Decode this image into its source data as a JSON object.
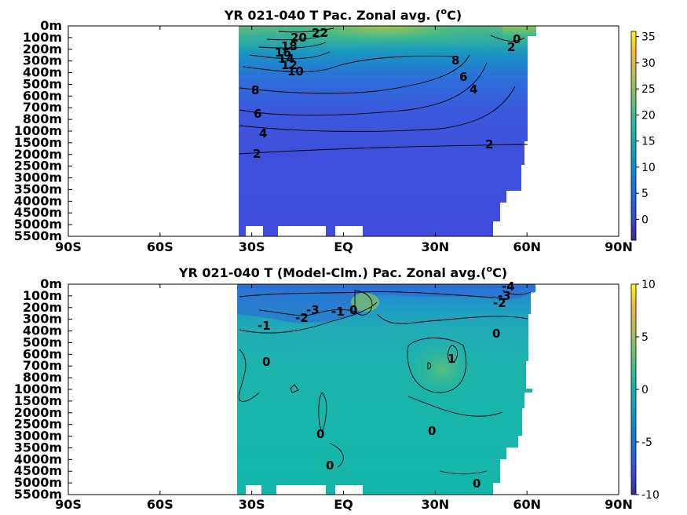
{
  "chart_data": [
    {
      "type": "heatmap",
      "title": "YR 021-040 T Pac. Zonal avg. (",
      "title_sup": "o",
      "title_unit": "C)",
      "x_ticks": [
        "90S",
        "60S",
        "30S",
        "EQ",
        "30N",
        "60N",
        "90N"
      ],
      "y_ticks": [
        "0m",
        "100m",
        "200m",
        "300m",
        "400m",
        "500m",
        "600m",
        "700m",
        "800m",
        "1000m",
        "1500m",
        "2000m",
        "2500m",
        "3000m",
        "3500m",
        "4000m",
        "4500m",
        "5000m",
        "5500m"
      ],
      "colorbar_ticks": [
        "35",
        "30",
        "25",
        "20",
        "15",
        "10",
        "5",
        "0"
      ],
      "colorbar_range": [
        -4,
        36
      ],
      "contour_labels": [
        "22",
        "20",
        "18",
        "16",
        "14",
        "12",
        "10",
        "8",
        "6",
        "4",
        "2",
        "0",
        "2",
        "8",
        "6",
        "4",
        "2"
      ],
      "color_scale": "parula"
    },
    {
      "type": "heatmap",
      "title": "YR 021-040 T (Model-Clm.) Pac. Zonal avg.(",
      "title_sup": "o",
      "title_unit": "C)",
      "x_ticks": [
        "90S",
        "60S",
        "30S",
        "EQ",
        "30N",
        "60N",
        "90N"
      ],
      "y_ticks": [
        "0m",
        "100m",
        "200m",
        "300m",
        "400m",
        "500m",
        "600m",
        "700m",
        "800m",
        "1000m",
        "1500m",
        "2000m",
        "2500m",
        "3000m",
        "3500m",
        "4000m",
        "4500m",
        "5000m",
        "5500m"
      ],
      "colorbar_ticks": [
        "10",
        "5",
        "0",
        "-5",
        "-10"
      ],
      "colorbar_range": [
        -10,
        10
      ],
      "contour_labels": [
        "-3",
        "-2",
        "-1",
        "0",
        "-1",
        "0",
        "1",
        "0",
        "0",
        "0",
        "0",
        "0",
        "-4",
        "-3",
        "-2"
      ],
      "color_scale": "parula"
    }
  ]
}
